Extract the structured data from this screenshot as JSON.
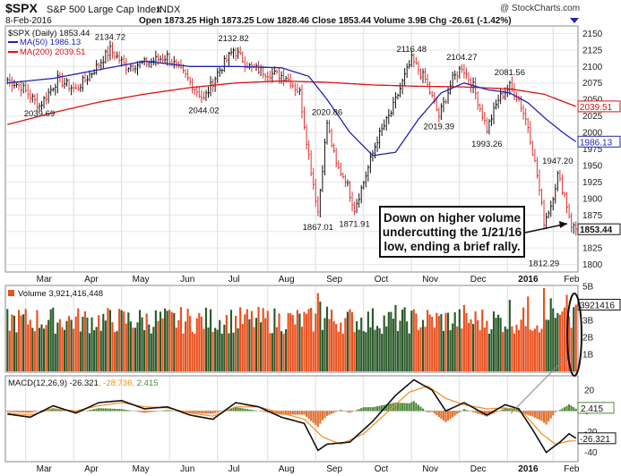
{
  "header": {
    "symbol": "$SPX",
    "name": "S&P 500 Large Cap Index",
    "exchange": "INDX",
    "date": "8-Feb-2016",
    "ohlc": "Open 1873.25  High 1873.25  Low 1828.46  Close 1853.44  Volume 3.9B  Chg -26.61 (-1.42%)",
    "source": "@ StockCharts.com"
  },
  "legend": {
    "price_label": "$SPX (Daily) 1853.44",
    "ma50_label": "MA(50) 1986.13",
    "ma200_label": "MA(200) 2039.51",
    "volume_label": "Volume 3,921,416,448",
    "macd_label": "MACD(12,26,9) -26.321",
    "macd_signal_text": ", -28.736, ",
    "macd_hist_text": "2.415"
  },
  "colors": {
    "up": "#2b5a2b",
    "down": "#e8501e",
    "ma50": "#2323b4",
    "ma200": "#dd1111",
    "macd": "#111111",
    "signal": "#f08c1e",
    "hist": "#4d8a3a",
    "hist_neg": "#e07030"
  },
  "callout": {
    "line1": "Down on higher volume",
    "line2": "undercutting the 1/21/16",
    "line3": "low, ending a brief rally."
  },
  "chart_data": {
    "type": "line",
    "months": [
      "Mar",
      "Apr",
      "May",
      "Jun",
      "Jul",
      "Aug",
      "Sep",
      "Oct",
      "Nov",
      "Dec",
      "2016",
      "Feb"
    ],
    "price_axis": {
      "ticks": [
        1800,
        1825,
        1850,
        1875,
        1900,
        1925,
        1950,
        1975,
        2000,
        2025,
        2050,
        2075,
        2100,
        2125,
        2150
      ],
      "range": [
        1790,
        2160
      ]
    },
    "price_markers": {
      "ma50": "1986.13",
      "ma200": "2039.51",
      "close": "1853.44"
    },
    "price_annotations": [
      {
        "label": "2039.69",
        "date_index": 14,
        "value": 2039.69
      },
      {
        "label": "2134.72",
        "date_index": 45,
        "value": 2134.72
      },
      {
        "label": "2044.02",
        "date_index": 86,
        "value": 2044.02
      },
      {
        "label": "2132.82",
        "date_index": 99,
        "value": 2132.82
      },
      {
        "label": "1867.01",
        "date_index": 136,
        "value": 1867.01
      },
      {
        "label": "2020.86",
        "date_index": 140,
        "value": 2020.86
      },
      {
        "label": "1871.91",
        "date_index": 152,
        "value": 1871.91
      },
      {
        "label": "2116.48",
        "date_index": 177,
        "value": 2116.48
      },
      {
        "label": "2019.39",
        "date_index": 189,
        "value": 2019.39
      },
      {
        "label": "2104.27",
        "date_index": 199,
        "value": 2104.27
      },
      {
        "label": "1993.26",
        "date_index": 210,
        "value": 1993.26
      },
      {
        "label": "2081.56",
        "date_index": 220,
        "value": 2081.56
      },
      {
        "label": "1947.20",
        "date_index": 241,
        "value": 1947.2
      },
      {
        "label": "1812.29",
        "date_index": 235,
        "value": 1812.29
      }
    ],
    "price_keypoints": [
      [
        0,
        2080
      ],
      [
        6,
        2070
      ],
      [
        14,
        2040
      ],
      [
        22,
        2080
      ],
      [
        30,
        2065
      ],
      [
        38,
        2095
      ],
      [
        45,
        2125
      ],
      [
        52,
        2100
      ],
      [
        60,
        2105
      ],
      [
        70,
        2115
      ],
      [
        78,
        2085
      ],
      [
        86,
        2050
      ],
      [
        92,
        2090
      ],
      [
        99,
        2125
      ],
      [
        106,
        2100
      ],
      [
        114,
        2090
      ],
      [
        122,
        2085
      ],
      [
        128,
        2060
      ],
      [
        132,
        1965
      ],
      [
        136,
        1880
      ],
      [
        140,
        2015
      ],
      [
        144,
        1950
      ],
      [
        148,
        1930
      ],
      [
        152,
        1885
      ],
      [
        156,
        1925
      ],
      [
        162,
        1990
      ],
      [
        168,
        2030
      ],
      [
        174,
        2085
      ],
      [
        177,
        2110
      ],
      [
        183,
        2080
      ],
      [
        189,
        2025
      ],
      [
        195,
        2080
      ],
      [
        199,
        2100
      ],
      [
        204,
        2070
      ],
      [
        210,
        2005
      ],
      [
        215,
        2050
      ],
      [
        220,
        2070
      ],
      [
        224,
        2050
      ],
      [
        228,
        2010
      ],
      [
        232,
        1935
      ],
      [
        235,
        1865
      ],
      [
        238,
        1890
      ],
      [
        241,
        1935
      ],
      [
        244,
        1905
      ],
      [
        247,
        1860
      ],
      [
        249,
        1853
      ]
    ],
    "ma50_keypoints": [
      [
        0,
        2075
      ],
      [
        20,
        2082
      ],
      [
        40,
        2095
      ],
      [
        60,
        2108
      ],
      [
        80,
        2100
      ],
      [
        100,
        2100
      ],
      [
        120,
        2098
      ],
      [
        132,
        2085
      ],
      [
        140,
        2050
      ],
      [
        150,
        2000
      ],
      [
        160,
        1965
      ],
      [
        170,
        1970
      ],
      [
        180,
        2020
      ],
      [
        190,
        2060
      ],
      [
        200,
        2075
      ],
      [
        210,
        2065
      ],
      [
        220,
        2060
      ],
      [
        228,
        2045
      ],
      [
        236,
        2020
      ],
      [
        244,
        1998
      ],
      [
        249,
        1986
      ]
    ],
    "ma200_keypoints": [
      [
        0,
        2012
      ],
      [
        20,
        2030
      ],
      [
        40,
        2046
      ],
      [
        60,
        2058
      ],
      [
        80,
        2068
      ],
      [
        100,
        2075
      ],
      [
        120,
        2078
      ],
      [
        140,
        2076
      ],
      [
        160,
        2072
      ],
      [
        180,
        2070
      ],
      [
        200,
        2069
      ],
      [
        220,
        2066
      ],
      [
        235,
        2058
      ],
      [
        249,
        2039.51
      ]
    ],
    "volume_axis": {
      "ticks": [
        "1B",
        "2B",
        "3B",
        "4B",
        "5B"
      ],
      "max": 5.0
    },
    "volume_marker": "3921416",
    "volume_spikes": [
      [
        136,
        4.6
      ],
      [
        137,
        4.1
      ],
      [
        140,
        3.8
      ],
      [
        170,
        3.9
      ],
      [
        200,
        3.9
      ],
      [
        220,
        4.2
      ],
      [
        228,
        4.4
      ],
      [
        235,
        4.9
      ],
      [
        238,
        4.3
      ],
      [
        245,
        4.5
      ],
      [
        249,
        3.92
      ]
    ],
    "macd_axis": {
      "ticks": [
        20,
        0,
        -20,
        -40
      ],
      "range": [
        -48,
        33
      ]
    },
    "macd_markers": {
      "hist": "2.415",
      "macd": "-26.321"
    },
    "macd_keypoints": [
      [
        0,
        -3
      ],
      [
        10,
        -6
      ],
      [
        20,
        5
      ],
      [
        30,
        -2
      ],
      [
        40,
        8
      ],
      [
        50,
        10
      ],
      [
        60,
        2
      ],
      [
        70,
        4
      ],
      [
        80,
        -4
      ],
      [
        90,
        -8
      ],
      [
        100,
        8
      ],
      [
        110,
        4
      ],
      [
        120,
        -6
      ],
      [
        130,
        -12
      ],
      [
        136,
        -38
      ],
      [
        140,
        -32
      ],
      [
        150,
        -30
      ],
      [
        160,
        -10
      ],
      [
        170,
        15
      ],
      [
        178,
        30
      ],
      [
        186,
        20
      ],
      [
        192,
        0
      ],
      [
        200,
        8
      ],
      [
        210,
        -4
      ],
      [
        218,
        6
      ],
      [
        224,
        2
      ],
      [
        230,
        -18
      ],
      [
        236,
        -40
      ],
      [
        242,
        -30
      ],
      [
        246,
        -22
      ],
      [
        249,
        -26.3
      ]
    ],
    "signal_keypoints": [
      [
        0,
        -2
      ],
      [
        10,
        -4
      ],
      [
        20,
        2
      ],
      [
        30,
        0
      ],
      [
        40,
        5
      ],
      [
        50,
        8
      ],
      [
        60,
        4
      ],
      [
        70,
        3
      ],
      [
        80,
        -2
      ],
      [
        90,
        -5
      ],
      [
        100,
        4
      ],
      [
        110,
        4
      ],
      [
        120,
        -2
      ],
      [
        130,
        -8
      ],
      [
        138,
        -25
      ],
      [
        146,
        -32
      ],
      [
        156,
        -22
      ],
      [
        166,
        -2
      ],
      [
        176,
        18
      ],
      [
        184,
        24
      ],
      [
        192,
        12
      ],
      [
        200,
        6
      ],
      [
        210,
        2
      ],
      [
        218,
        3
      ],
      [
        226,
        -2
      ],
      [
        234,
        -22
      ],
      [
        240,
        -32
      ],
      [
        246,
        -29
      ],
      [
        249,
        -28.7
      ]
    ]
  }
}
